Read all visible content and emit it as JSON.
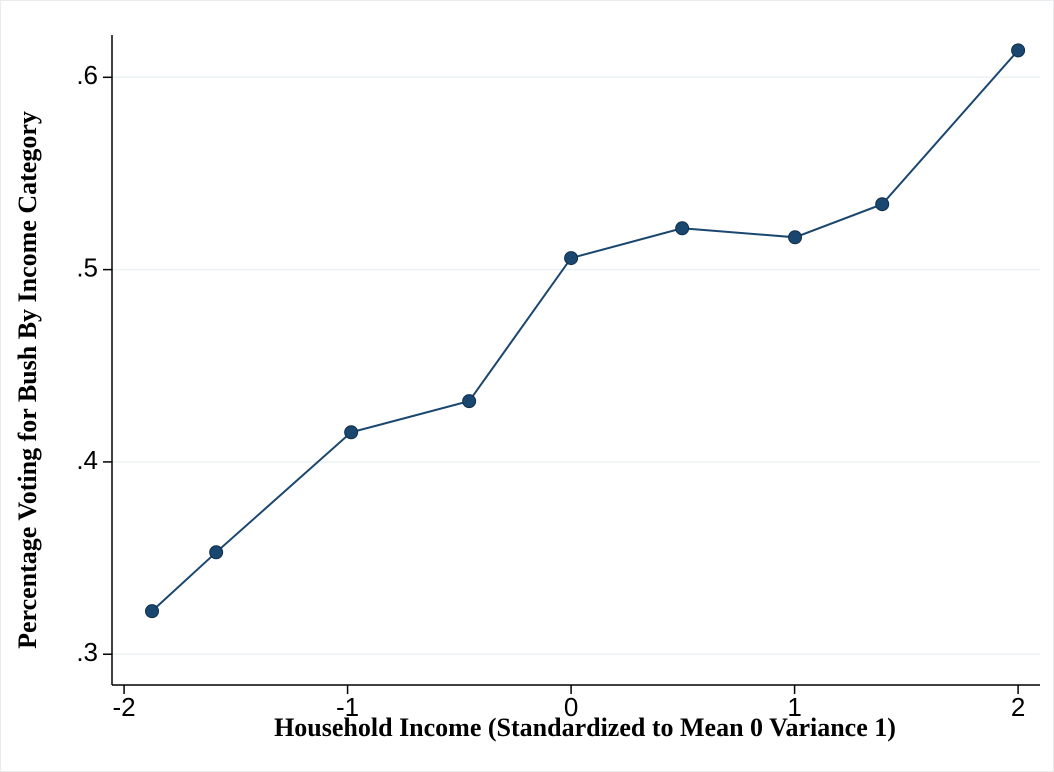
{
  "chart_data": {
    "type": "line",
    "x_label": "Household Income (Standardized to Mean 0 Variance 1)",
    "y_label": "Percentage Voting for Bush By Income Category",
    "x": [
      -1.875,
      -1.588,
      -0.984,
      -0.456,
      0,
      0.497,
      1.002,
      1.392,
      2
    ],
    "series": [
      {
        "color": "#1a476f",
        "values": [
          0.3224,
          0.353,
          0.4154,
          0.4316,
          0.506,
          0.5215,
          0.5168,
          0.534,
          0.614
        ]
      }
    ],
    "xlim": [
      -2.054,
      2.098
    ],
    "xticks": [
      -2,
      -1,
      0,
      1,
      2
    ],
    "ylim": [
      0.284,
      0.622
    ],
    "yticks": [
      {
        "value": 0.3,
        "label": ".3"
      },
      {
        "value": 0.4,
        "label": ".4"
      },
      {
        "value": 0.5,
        "label": ".5"
      },
      {
        "value": 0.6,
        "label": ".6"
      }
    ],
    "grid": true
  }
}
